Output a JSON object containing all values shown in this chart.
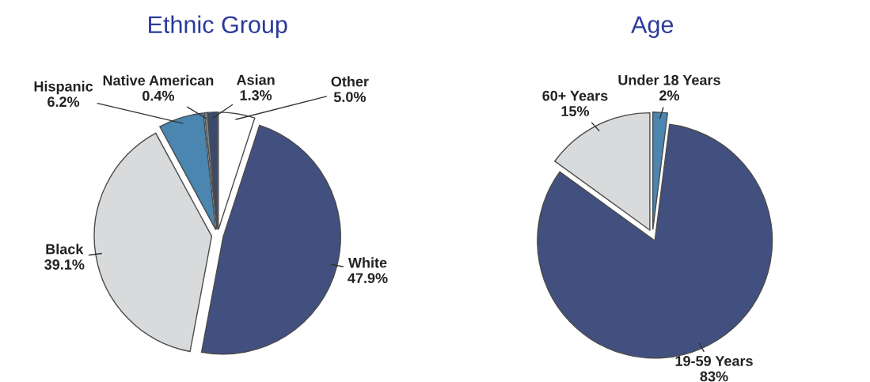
{
  "chart_data": [
    {
      "type": "pie",
      "title": "Ethnic Group",
      "categories": [
        "Other",
        "White",
        "Black",
        "Hispanic",
        "Native American",
        "Asian"
      ],
      "values": [
        5.0,
        47.9,
        39.1,
        6.2,
        0.4,
        1.3
      ],
      "value_labels": [
        "5.0%",
        "47.9%",
        "39.1%",
        "6.2%",
        "0.4%",
        "1.3%"
      ],
      "colors": [
        "#ffffff",
        "#425080",
        "#d8dadb",
        "#4a86b0",
        "#7f8c99",
        "#3a4a6e"
      ]
    },
    {
      "type": "pie",
      "title": "Age",
      "categories": [
        "Under 18 Years",
        "19-59 Years",
        "60+ Years"
      ],
      "values": [
        2,
        83,
        15
      ],
      "value_labels": [
        "2%",
        "83%",
        "15%"
      ],
      "colors": [
        "#4a86b0",
        "#425080",
        "#d8dadb"
      ]
    }
  ]
}
